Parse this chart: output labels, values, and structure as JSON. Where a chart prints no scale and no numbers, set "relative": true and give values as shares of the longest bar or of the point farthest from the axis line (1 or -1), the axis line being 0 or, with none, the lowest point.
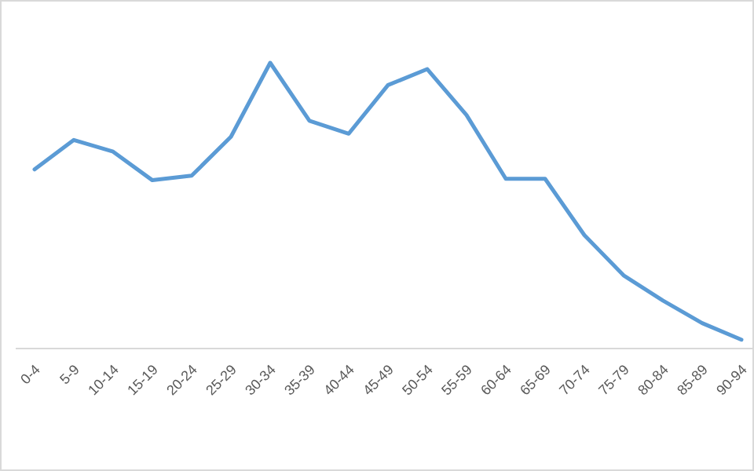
{
  "chart_data": {
    "type": "line",
    "relative": true,
    "categories": [
      "0-4",
      "5-9",
      "10-14",
      "15-19",
      "20-24",
      "25-29",
      "30-34",
      "35-39",
      "40-44",
      "45-49",
      "50-54",
      "55-59",
      "60-64",
      "65-69",
      "70-74",
      "75-79",
      "80-84",
      "85-89",
      "90-94"
    ],
    "series": [
      {
        "color": "#5b9bd5",
        "values": [
          0.627,
          0.73,
          0.689,
          0.589,
          0.605,
          0.741,
          1,
          0.797,
          0.752,
          0.922,
          0.978,
          0.817,
          0.594,
          0.594,
          0.397,
          0.256,
          0.168,
          0.089,
          0.031
        ]
      }
    ],
    "marker": "none",
    "line_style": "solid"
  }
}
